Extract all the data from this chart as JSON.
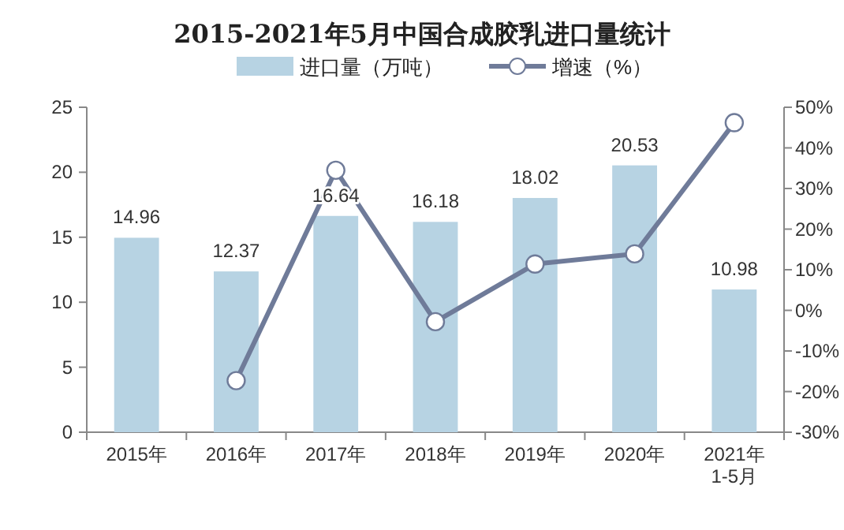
{
  "chart_data": {
    "type": "bar",
    "title": "2015-2021年5月中国合成胶乳进口量统计",
    "categories": [
      "2015年",
      "2016年",
      "2017年",
      "2018年",
      "2019年",
      "2020年",
      "2021年\n1-5月"
    ],
    "series": [
      {
        "name": "进口量（万吨）",
        "color": "#b7d3e3",
        "values": [
          14.96,
          12.37,
          16.64,
          16.18,
          18.02,
          20.53,
          10.98
        ],
        "value_labels": [
          "14.96",
          "12.37",
          "16.64",
          "16.18",
          "18.02",
          "20.53",
          "10.98"
        ]
      },
      {
        "name": "增速（%）",
        "type": "line",
        "axis": "y2",
        "color": "#6f7b99",
        "marker": "circle",
        "values": [
          null,
          -17.3,
          34.5,
          -2.8,
          11.4,
          13.9,
          46.2
        ]
      }
    ],
    "ylim": [
      0,
      25
    ],
    "yticks": [
      0,
      5,
      10,
      15,
      20,
      25
    ],
    "y2lim": [
      -30,
      50
    ],
    "y2ticks": [
      {
        "value": -30,
        "label": "-30%"
      },
      {
        "value": -20,
        "label": "-20%"
      },
      {
        "value": -10,
        "label": "-10%"
      },
      {
        "value": 0,
        "label": "0%"
      },
      {
        "value": 10,
        "label": "10%"
      },
      {
        "value": 20,
        "label": "20%"
      },
      {
        "value": 30,
        "label": "30%"
      },
      {
        "value": 40,
        "label": "40%"
      },
      {
        "value": 50,
        "label": "50%"
      }
    ],
    "legend": "top",
    "grid": false
  }
}
